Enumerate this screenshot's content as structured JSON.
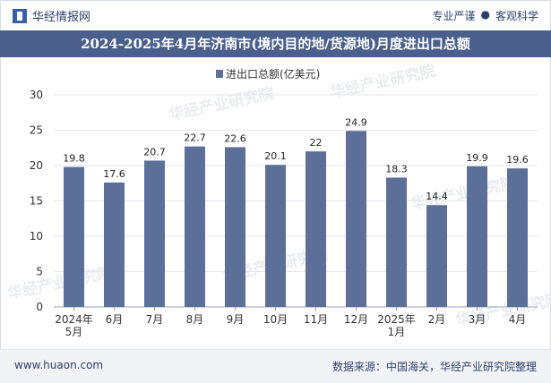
{
  "header": {
    "brand_name": "华经情报网",
    "tag_left": "专业严谨",
    "tag_separator": "●",
    "tag_right": "客观科学"
  },
  "title": "2024-2025年4月年济南市(境内目的地/货源地)月度进出口总额",
  "chart_data": {
    "type": "bar",
    "legend": "进出口总额(亿美元)",
    "categories": [
      [
        "2024年",
        "5月"
      ],
      [
        "6月"
      ],
      [
        "7月"
      ],
      [
        "8月"
      ],
      [
        "9月"
      ],
      [
        "10月"
      ],
      [
        "11月"
      ],
      [
        "12月"
      ],
      [
        "2025年",
        "1月"
      ],
      [
        "2月"
      ],
      [
        "3月"
      ],
      [
        "4月"
      ]
    ],
    "values": [
      19.8,
      17.6,
      20.7,
      22.7,
      22.6,
      20.1,
      22,
      24.9,
      18.3,
      14.4,
      19.9,
      19.6
    ],
    "value_labels": [
      "19.8",
      "17.6",
      "20.7",
      "22.7",
      "22.6",
      "20.1",
      "22",
      "24.9",
      "18.3",
      "14.4",
      "19.9",
      "19.6"
    ],
    "ylim": [
      0,
      30
    ],
    "yticks": [
      "0",
      "5",
      "10",
      "15",
      "20",
      "25",
      "30"
    ],
    "bar_color": "#5b6f98",
    "gridlines": true
  },
  "watermark": "华经产业研究院",
  "footer": {
    "website": "www.huaon.com",
    "source": "数据来源：中国海关，华经产业研究院整理"
  }
}
